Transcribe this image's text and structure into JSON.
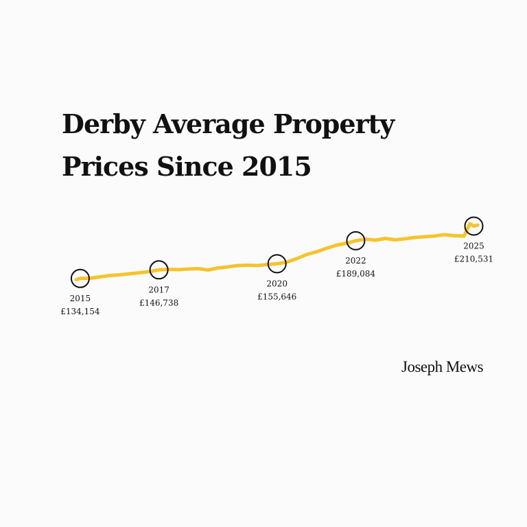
{
  "title": {
    "line1": "Derby Average Property",
    "line2": "Prices Since 2015"
  },
  "brand": "Joseph Mews",
  "colors": {
    "line": "#f5c32c",
    "marker": "#111111",
    "text": "#111111",
    "background": "#fbfbfb"
  },
  "chart_data": {
    "type": "line",
    "title": "Derby Average Property Prices Since 2015",
    "grid": false,
    "legend": "none",
    "xlim": [
      2014.88,
      2025.34
    ],
    "ylim": [
      100000,
      240000
    ],
    "series": [
      {
        "x": [
          2014.9,
          2015.0,
          2015.25,
          2015.5,
          2015.75,
          2016.0,
          2016.25,
          2016.5,
          2016.75,
          2017.0,
          2017.25,
          2017.5,
          2017.75,
          2018.0,
          2018.25,
          2018.5,
          2018.75,
          2019.0,
          2019.25,
          2019.5,
          2019.75,
          2020.0,
          2020.25,
          2020.5,
          2020.75,
          2021.0,
          2021.25,
          2021.5,
          2021.75,
          2022.0,
          2022.25,
          2022.5,
          2022.75,
          2023.0,
          2023.25,
          2023.5,
          2023.75,
          2024.0,
          2024.25,
          2024.5,
          2024.75,
          2024.9,
          2025.0,
          2025.1
        ],
        "values": [
          132500,
          134154,
          134500,
          136500,
          138500,
          139500,
          141000,
          142500,
          144000,
          146738,
          147500,
          147000,
          148000,
          148500,
          146500,
          149500,
          151000,
          153000,
          153500,
          153000,
          154500,
          155646,
          158000,
          163000,
          169000,
          173000,
          178000,
          182500,
          185500,
          189084,
          191500,
          190000,
          192500,
          190500,
          192000,
          194000,
          195000,
          196000,
          198000,
          196500,
          196000,
          214000,
          210531,
          212000
        ]
      }
    ],
    "highlights": [
      {
        "x": 2015,
        "year": "2015",
        "value": 134154,
        "label": "£134,154"
      },
      {
        "x": 2017,
        "year": "2017",
        "value": 146738,
        "label": "£146,738"
      },
      {
        "x": 2020,
        "year": "2020",
        "value": 155646,
        "label": "£155,646"
      },
      {
        "x": 2022,
        "year": "2022",
        "value": 189084,
        "label": "£189,084"
      },
      {
        "x": 2025,
        "year": "2025",
        "value": 210531,
        "label": "£210,531"
      }
    ]
  }
}
